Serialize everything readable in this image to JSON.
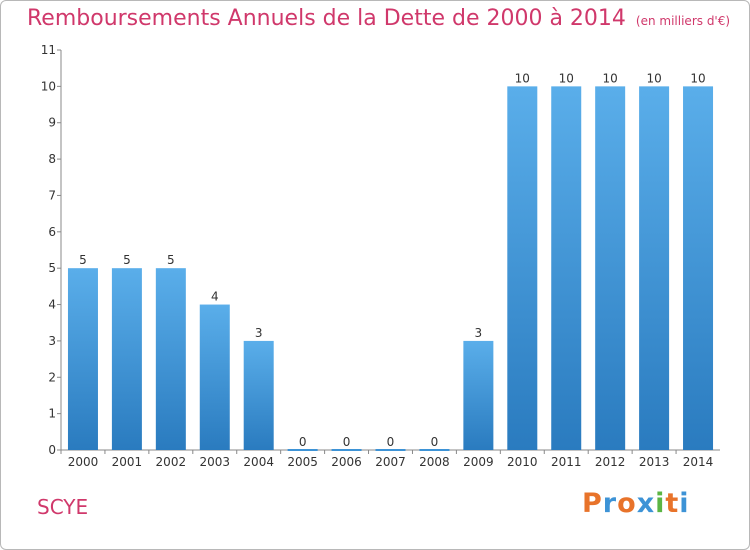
{
  "chart_data": {
    "type": "bar",
    "title": "Remboursements Annuels de la Dette de 2000 à 2014",
    "unit_note": "(en milliers d'€)",
    "categories": [
      "2000",
      "2001",
      "2002",
      "2003",
      "2004",
      "2005",
      "2006",
      "2007",
      "2008",
      "2009",
      "2010",
      "2011",
      "2012",
      "2013",
      "2014"
    ],
    "values": [
      5,
      5,
      5,
      4,
      3,
      0,
      0,
      0,
      0,
      3,
      10,
      10,
      10,
      10,
      10
    ],
    "ylim": [
      0,
      11
    ],
    "yticks": [
      0,
      1,
      2,
      3,
      4,
      5,
      6,
      7,
      8,
      9,
      10,
      11
    ],
    "grid": false,
    "bar_color": "#3d93d6"
  },
  "footer": {
    "town": "SCYE",
    "logo": "Proxiti"
  },
  "colors": {
    "title": "#d0386b",
    "logo_letters": [
      "#e8732a",
      "#3d93d6",
      "#e8732a",
      "#3d93d6",
      "#5bb544",
      "#e8732a",
      "#3d93d6"
    ]
  }
}
